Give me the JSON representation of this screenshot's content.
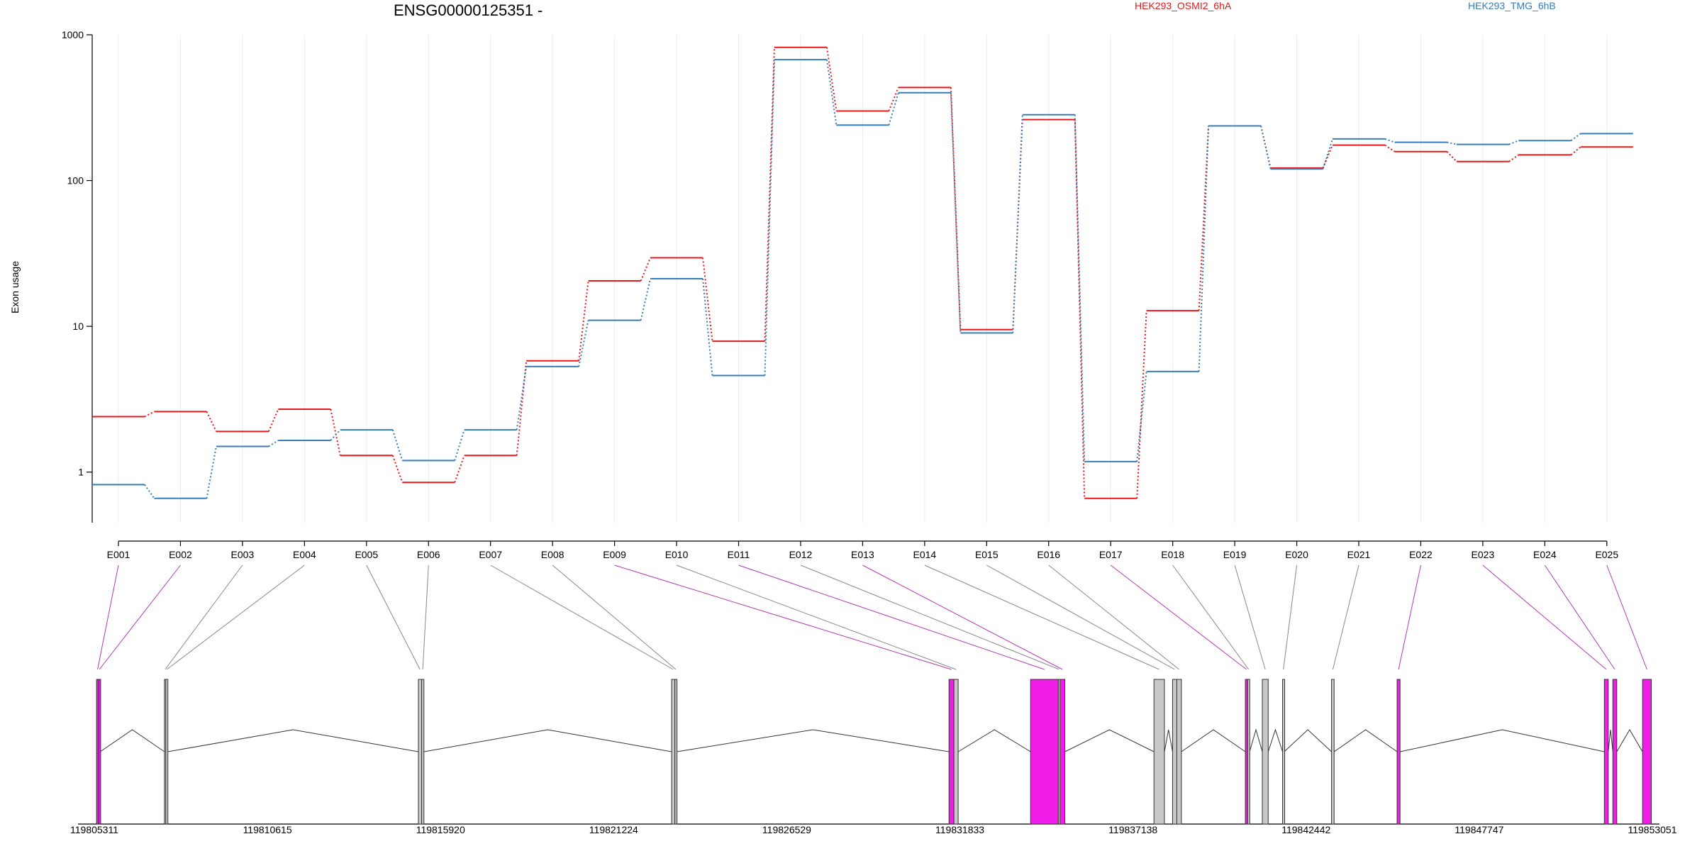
{
  "chart_data": {
    "type": "line",
    "title": "ENSG00000125351 -",
    "ylabel": "Exon usage",
    "y_scale": "log",
    "ylim": [
      0.45,
      1000
    ],
    "yticks": [
      {
        "value": 1,
        "label": "1"
      },
      {
        "value": 10,
        "label": "10"
      },
      {
        "value": 100,
        "label": "100"
      },
      {
        "value": 1000,
        "label": "1000"
      }
    ],
    "categories": [
      "E001",
      "E002",
      "E003",
      "E004",
      "E005",
      "E006",
      "E007",
      "E008",
      "E009",
      "E010",
      "E011",
      "E012",
      "E013",
      "E014",
      "E015",
      "E016",
      "E017",
      "E018",
      "E019",
      "E020",
      "E021",
      "E022",
      "E023",
      "E024",
      "E025"
    ],
    "series": [
      {
        "name": "HEK293_OSMI2_6hA",
        "color": "#e41a1c",
        "values": [
          2.4,
          2.6,
          1.9,
          2.7,
          1.3,
          0.85,
          1.3,
          5.8,
          20.5,
          29.5,
          7.9,
          820,
          300,
          435,
          9.5,
          262,
          0.66,
          12.8,
          237,
          122,
          175,
          158,
          135,
          150,
          170
        ]
      },
      {
        "name": "HEK293_TMG_6hB",
        "color": "#377eb8",
        "values": [
          0.82,
          0.66,
          1.5,
          1.65,
          1.95,
          1.2,
          1.95,
          5.3,
          11.0,
          21.2,
          4.6,
          675,
          240,
          400,
          9.0,
          283,
          1.18,
          4.9,
          237,
          120,
          193,
          183,
          177,
          188,
          210
        ]
      }
    ],
    "grid": "vertical only",
    "legend": "top",
    "gene_track": {
      "coordinate_ticks": [
        {
          "value": 119805311,
          "label": "119805311"
        },
        {
          "value": 119810615,
          "label": "119810615"
        },
        {
          "value": 119815920,
          "label": "119815920"
        },
        {
          "value": 119821224,
          "label": "119821224"
        },
        {
          "value": 119826529,
          "label": "119826529"
        },
        {
          "value": 119831833,
          "label": "119831833"
        },
        {
          "value": 119837138,
          "label": "119837138"
        },
        {
          "value": 119842442,
          "label": "119842442"
        },
        {
          "value": 119847747,
          "label": "119847747"
        },
        {
          "value": 119853051,
          "label": "119853051"
        }
      ],
      "highlight_color": "#f01ee8",
      "neutral_color": "#c8c8c8",
      "exons": [
        {
          "id": "E001",
          "start": 119805380,
          "end": 119805440,
          "highlight": true
        },
        {
          "id": "E002",
          "start": 119805440,
          "end": 119805490,
          "highlight": true
        },
        {
          "id": "E003",
          "start": 119807460,
          "end": 119807500,
          "highlight": false
        },
        {
          "id": "E004",
          "start": 119807500,
          "end": 119807560,
          "highlight": false
        },
        {
          "id": "E005",
          "start": 119815240,
          "end": 119815340,
          "highlight": false
        },
        {
          "id": "E006",
          "start": 119815340,
          "end": 119815410,
          "highlight": false
        },
        {
          "id": "E007",
          "start": 119823000,
          "end": 119823100,
          "highlight": false
        },
        {
          "id": "E008",
          "start": 119823100,
          "end": 119823160,
          "highlight": false
        },
        {
          "id": "E009",
          "start": 119831500,
          "end": 119831650,
          "highlight": true
        },
        {
          "id": "E010",
          "start": 119831650,
          "end": 119831780,
          "highlight": false
        },
        {
          "id": "E011",
          "start": 119834000,
          "end": 119834850,
          "highlight": true
        },
        {
          "id": "E012",
          "start": 119834850,
          "end": 119834900,
          "highlight": false
        },
        {
          "id": "E013",
          "start": 119834900,
          "end": 119835050,
          "highlight": true
        },
        {
          "id": "E014",
          "start": 119837780,
          "end": 119838100,
          "highlight": false
        },
        {
          "id": "E015",
          "start": 119838350,
          "end": 119838480,
          "highlight": false
        },
        {
          "id": "E016",
          "start": 119838480,
          "end": 119838620,
          "highlight": false
        },
        {
          "id": "E017",
          "start": 119840580,
          "end": 119840650,
          "highlight": true
        },
        {
          "id": "E018",
          "start": 119840650,
          "end": 119840710,
          "highlight": false
        },
        {
          "id": "E019",
          "start": 119841100,
          "end": 119841280,
          "highlight": false
        },
        {
          "id": "E020",
          "start": 119841720,
          "end": 119841770,
          "highlight": false
        },
        {
          "id": "E021",
          "start": 119843220,
          "end": 119843300,
          "highlight": false
        },
        {
          "id": "E022",
          "start": 119845230,
          "end": 119845320,
          "highlight": true
        },
        {
          "id": "E023",
          "start": 119851580,
          "end": 119851700,
          "highlight": true
        },
        {
          "id": "E024",
          "start": 119851840,
          "end": 119851960,
          "highlight": true
        },
        {
          "id": "E025",
          "start": 119852750,
          "end": 119853020,
          "highlight": true
        }
      ]
    }
  }
}
